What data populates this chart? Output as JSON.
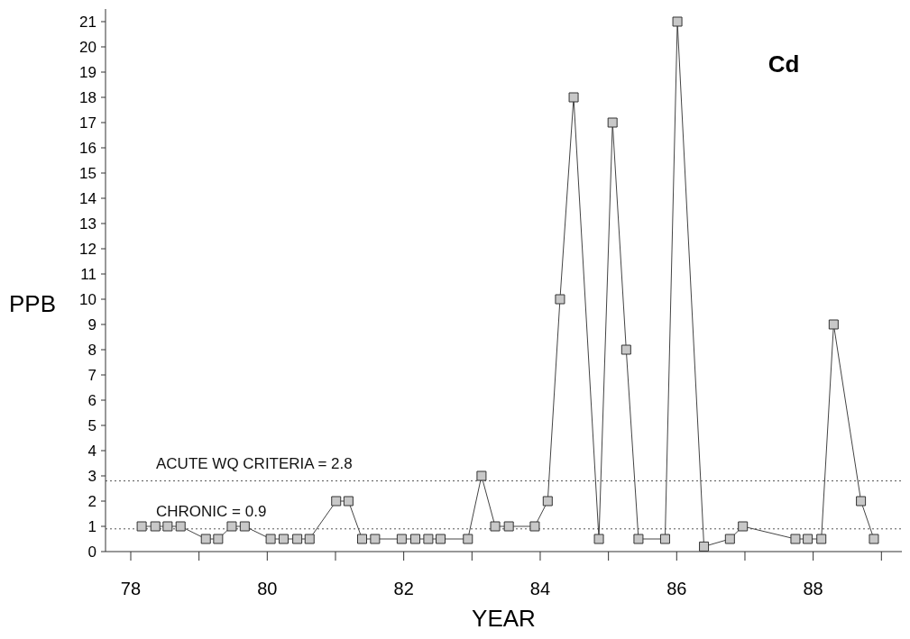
{
  "chart_data": {
    "type": "line",
    "title": "Cd",
    "xlabel": "YEAR",
    "ylabel": "PPB",
    "xlim": [
      77.63,
      89.3
    ],
    "ylim": [
      0,
      21.5
    ],
    "xticks": [
      {
        "value": 78,
        "label": "78"
      },
      {
        "value": 79,
        "label": null
      },
      {
        "value": 80,
        "label": "80"
      },
      {
        "value": 81,
        "label": null
      },
      {
        "value": 82,
        "label": "82"
      },
      {
        "value": 83,
        "label": null
      },
      {
        "value": 84,
        "label": "84"
      },
      {
        "value": 85,
        "label": null
      },
      {
        "value": 86,
        "label": "86"
      },
      {
        "value": 87,
        "label": null
      },
      {
        "value": 88,
        "label": "88"
      },
      {
        "value": 89,
        "label": null
      }
    ],
    "yticks": [
      0,
      1,
      2,
      3,
      4,
      5,
      6,
      7,
      8,
      9,
      10,
      11,
      12,
      13,
      14,
      15,
      16,
      17,
      18,
      19,
      20,
      21
    ],
    "marker": "square",
    "line_style": "solid",
    "ref_lines": [
      {
        "axis": "y",
        "value": 2.8,
        "label": "ACUTE WQ CRITERIA = 2.8",
        "color": "#555555",
        "line_style": "dotted"
      },
      {
        "axis": "y",
        "value": 0.9,
        "label": "CHRONIC = 0.9",
        "color": "#555555",
        "line_style": "dotted"
      }
    ],
    "series": [
      {
        "color": "#444444",
        "x": [
          78.16,
          78.36,
          78.54,
          78.73,
          79.1,
          79.28,
          79.48,
          79.67,
          80.05,
          80.24,
          80.44,
          80.62,
          81.01,
          81.19,
          81.39,
          81.58,
          81.97,
          82.17,
          82.36,
          82.54,
          82.94,
          83.14,
          83.34,
          83.54,
          83.92,
          84.11,
          84.29,
          84.49,
          84.86,
          85.06,
          85.26,
          85.44,
          85.83,
          86.01,
          86.4,
          86.78,
          86.97,
          87.74,
          87.92,
          88.12,
          88.3,
          88.7,
          88.89
        ],
        "values": [
          1,
          1,
          1,
          1,
          0.5,
          0.5,
          1,
          1,
          0.5,
          0.5,
          0.5,
          0.5,
          2,
          2,
          0.5,
          0.5,
          0.5,
          0.5,
          0.5,
          0.5,
          0.5,
          3,
          1,
          1,
          1,
          2,
          10,
          18,
          0.5,
          17,
          8,
          0.5,
          0.5,
          21,
          0.2,
          0.5,
          1,
          0.5,
          0.5,
          0.5,
          9,
          2,
          0.5
        ]
      }
    ]
  }
}
